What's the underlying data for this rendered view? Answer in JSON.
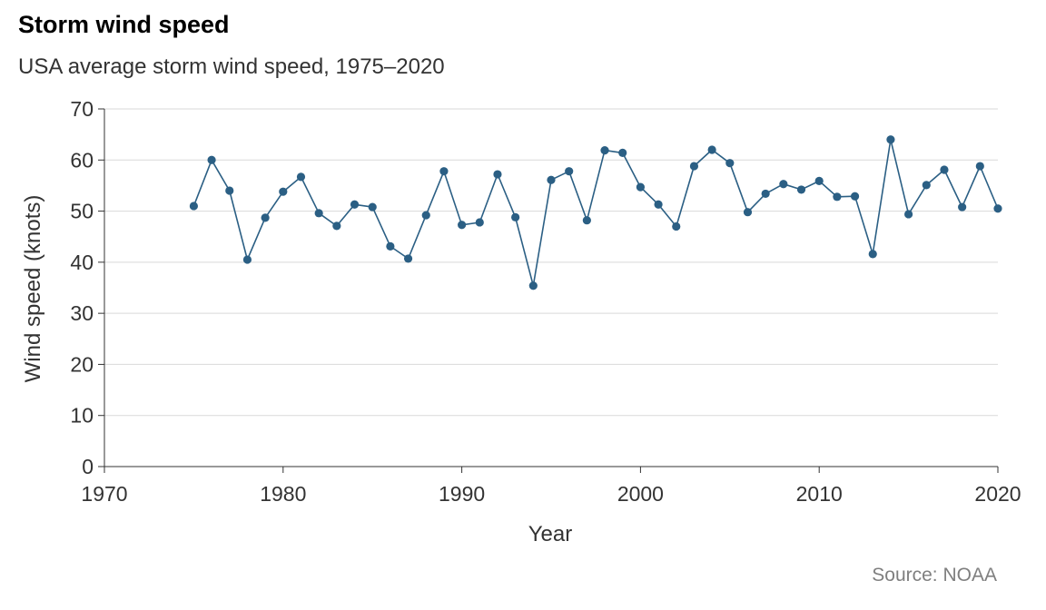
{
  "header": {
    "title": "Storm wind speed",
    "subtitle": "USA average storm wind speed, 1975–2020"
  },
  "footer": {
    "source": "Source: NOAA"
  },
  "colors": {
    "series": "#2b5f84",
    "grid": "#d9d9d9",
    "axis": "#333333"
  },
  "chart_data": {
    "type": "line",
    "title": "Storm wind speed",
    "subtitle": "USA average storm wind speed, 1975–2020",
    "xlabel": "Year",
    "ylabel": "Wind speed (knots)",
    "xlim": [
      1970,
      2020
    ],
    "ylim": [
      0,
      70
    ],
    "x_ticks": [
      1970,
      1980,
      1990,
      2000,
      2010,
      2020
    ],
    "y_ticks": [
      0,
      10,
      20,
      30,
      40,
      50,
      60,
      70
    ],
    "grid": "horizontal",
    "markers": true,
    "series": [
      {
        "x": [
          1975,
          1976,
          1977,
          1978,
          1979,
          1980,
          1981,
          1982,
          1983,
          1984,
          1985,
          1986,
          1987,
          1988,
          1989,
          1990,
          1991,
          1992,
          1993,
          1994,
          1995,
          1996,
          1997,
          1998,
          1999,
          2000,
          2001,
          2002,
          2003,
          2004,
          2005,
          2006,
          2007,
          2008,
          2009,
          2010,
          2011,
          2012,
          2013,
          2014,
          2015,
          2016,
          2017,
          2018,
          2019,
          2020
        ],
        "values": [
          51.0,
          60.0,
          54.0,
          40.5,
          48.7,
          53.8,
          56.7,
          49.6,
          47.1,
          51.3,
          50.8,
          43.1,
          40.7,
          49.2,
          57.8,
          47.3,
          47.8,
          57.2,
          48.8,
          35.4,
          56.1,
          57.8,
          48.2,
          61.9,
          61.4,
          54.7,
          51.3,
          47.0,
          58.8,
          62.0,
          59.4,
          49.8,
          53.4,
          55.3,
          54.2,
          55.9,
          52.8,
          52.9,
          41.6,
          64.0,
          49.4,
          55.1,
          58.1,
          50.8,
          58.8,
          50.5
        ]
      }
    ]
  }
}
